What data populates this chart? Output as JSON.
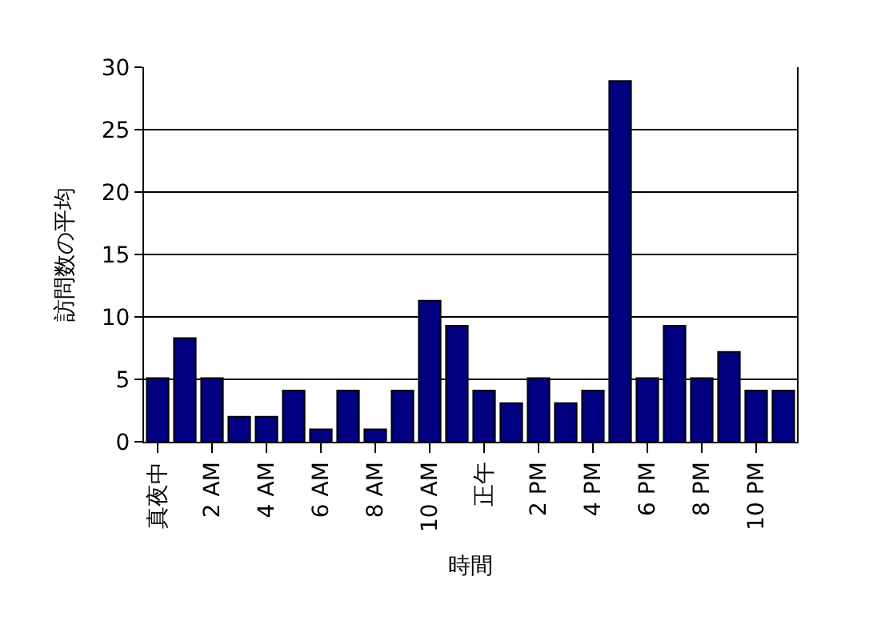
{
  "chart_data": {
    "type": "bar",
    "xlabel": "時間",
    "ylabel": "訪問数の平均",
    "categories": [
      "真夜中",
      null,
      "2 AM",
      null,
      "4 AM",
      null,
      "6 AM",
      null,
      "8 AM",
      null,
      "10 AM",
      null,
      "正午",
      null,
      "2 PM",
      null,
      "4 PM",
      null,
      "6 PM",
      null,
      "8 PM",
      null,
      "10 PM",
      null
    ],
    "values": [
      5.1,
      8.3,
      5.1,
      2,
      2,
      4.1,
      1,
      4.1,
      1,
      4.1,
      11.3,
      9.3,
      4.1,
      3.1,
      5.1,
      3.1,
      4.1,
      28.9,
      5.1,
      9.3,
      5.1,
      7.2,
      4.1,
      4.1
    ],
    "color": "#000080",
    "ylim": [
      0,
      30
    ],
    "yticks": [
      0,
      5,
      10,
      15,
      20,
      25,
      30
    ],
    "grid": "y"
  }
}
